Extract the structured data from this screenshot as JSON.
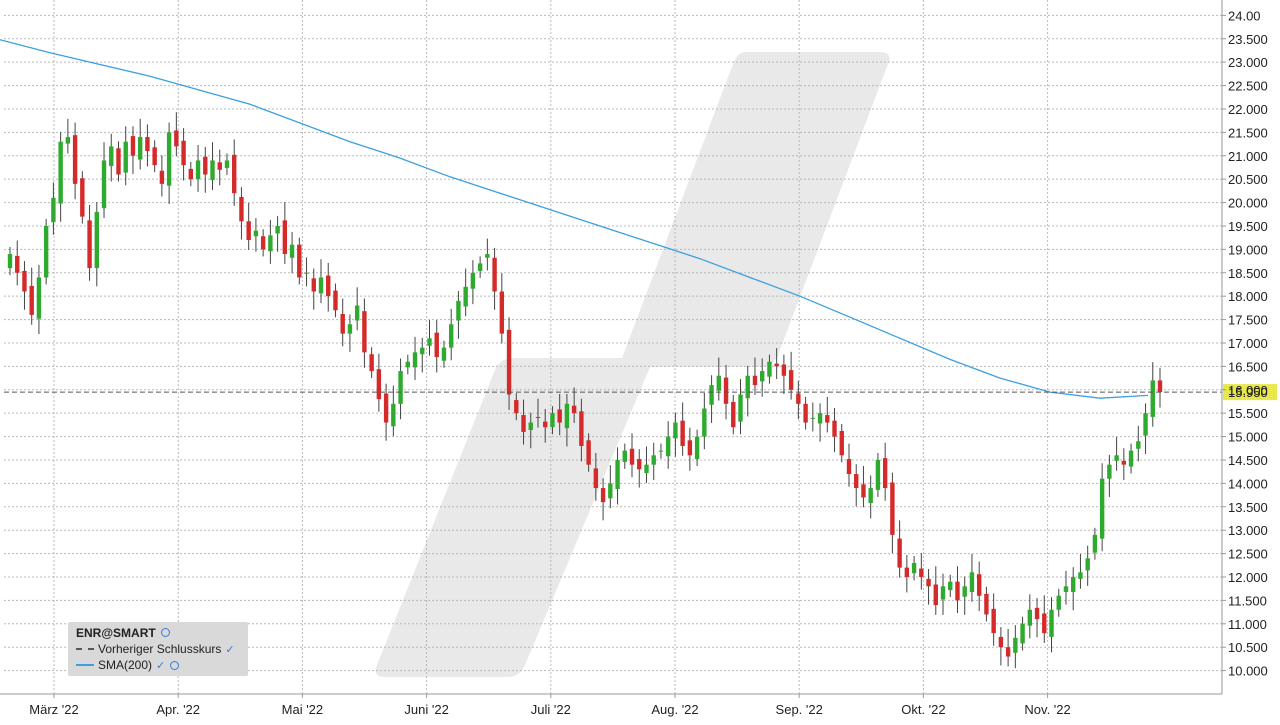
{
  "chart_data": {
    "type": "candlestick",
    "x_labels": [
      "März '22",
      "Apr. '22",
      "Mai '22",
      "Juni '22",
      "Juli '22",
      "Aug. '22",
      "Sep. '22",
      "Okt. '22",
      "Nov. '22"
    ],
    "y_ticks": [
      "10.000",
      "10.500",
      "11.000",
      "11.500",
      "12.000",
      "12.500",
      "13.000",
      "13.500",
      "14.000",
      "14.500",
      "15.000",
      "15.500",
      "16.000",
      "16.500",
      "17.000",
      "17.500",
      "18.000",
      "18.500",
      "19.000",
      "19.500",
      "20.000",
      "20.500",
      "21.000",
      "21.500",
      "22.000",
      "22.500",
      "23.000",
      "23.500",
      "24.00"
    ],
    "ylim": [
      9.5,
      24.2
    ],
    "grid": true,
    "previous_close": 15.95,
    "previous_close_label": "15.950",
    "close_series": [
      18.9,
      18.5,
      18.1,
      17.6,
      18.4,
      19.5,
      20.1,
      21.3,
      21.4,
      20.4,
      19.7,
      18.6,
      19.8,
      20.9,
      21.2,
      20.6,
      21.3,
      21.0,
      21.4,
      21.1,
      20.8,
      20.4,
      21.5,
      21.2,
      20.8,
      20.5,
      20.9,
      20.6,
      20.9,
      20.7,
      20.9,
      20.2,
      19.6,
      19.2,
      19.4,
      19.0,
      19.3,
      19.5,
      18.9,
      19.1,
      18.4,
      18.5,
      18.1,
      18.4,
      18.0,
      17.7,
      17.2,
      17.4,
      17.8,
      16.8,
      16.4,
      15.8,
      15.3,
      15.7,
      16.4,
      16.6,
      16.8,
      16.9,
      17.1,
      16.7,
      16.9,
      17.4,
      17.9,
      18.2,
      18.5,
      18.7,
      18.9,
      18.1,
      17.2,
      15.9,
      15.5,
      15.1,
      15.3,
      15.4,
      15.2,
      15.5,
      15.3,
      15.7,
      15.5,
      14.8,
      14.4,
      13.9,
      13.6,
      14.0,
      14.5,
      14.7,
      14.4,
      14.3,
      14.4,
      14.6,
      14.7,
      15.0,
      15.3,
      14.8,
      14.6,
      15.0,
      15.6,
      16.1,
      16.3,
      15.7,
      15.2,
      15.9,
      16.3,
      16.1,
      16.4,
      16.6,
      16.5,
      16.3,
      16.0,
      15.7,
      15.3,
      15.4,
      15.5,
      15.3,
      15.0,
      14.6,
      14.2,
      13.9,
      13.7,
      13.9,
      14.5,
      13.9,
      12.9,
      12.2,
      12.0,
      12.3,
      12.0,
      11.8,
      11.4,
      11.8,
      11.9,
      11.5,
      11.8,
      12.1,
      11.6,
      11.2,
      10.8,
      10.5,
      10.3,
      10.7,
      11.0,
      11.3,
      11.1,
      10.8,
      11.3,
      11.6,
      11.8,
      12.0,
      12.1,
      12.4,
      12.9,
      14.1,
      14.4,
      14.6,
      14.4,
      14.7,
      14.9,
      15.5,
      16.2,
      15.95
    ],
    "sma_line": [
      [
        0,
        23.48
      ],
      [
        50,
        23.2
      ],
      [
        100,
        22.95
      ],
      [
        150,
        22.7
      ],
      [
        200,
        22.4
      ],
      [
        250,
        22.1
      ],
      [
        300,
        21.7
      ],
      [
        350,
        21.3
      ],
      [
        400,
        20.95
      ],
      [
        450,
        20.55
      ],
      [
        500,
        20.2
      ],
      [
        550,
        19.85
      ],
      [
        600,
        19.5
      ],
      [
        650,
        19.15
      ],
      [
        700,
        18.8
      ],
      [
        750,
        18.4
      ],
      [
        800,
        18.0
      ],
      [
        850,
        17.55
      ],
      [
        900,
        17.1
      ],
      [
        950,
        16.65
      ],
      [
        1000,
        16.25
      ],
      [
        1050,
        15.95
      ],
      [
        1100,
        15.82
      ],
      [
        1148,
        15.88
      ]
    ],
    "legend": {
      "title": "ENR@SMART",
      "items": [
        "Vorheriger Schlusskurs",
        "SMA(200)"
      ]
    },
    "colors": {
      "up": "#2eaa2e",
      "down": "#d42a2a",
      "sma": "#3aa0e0",
      "ref_line": "#555555",
      "highlight": "#e8e84a"
    }
  }
}
